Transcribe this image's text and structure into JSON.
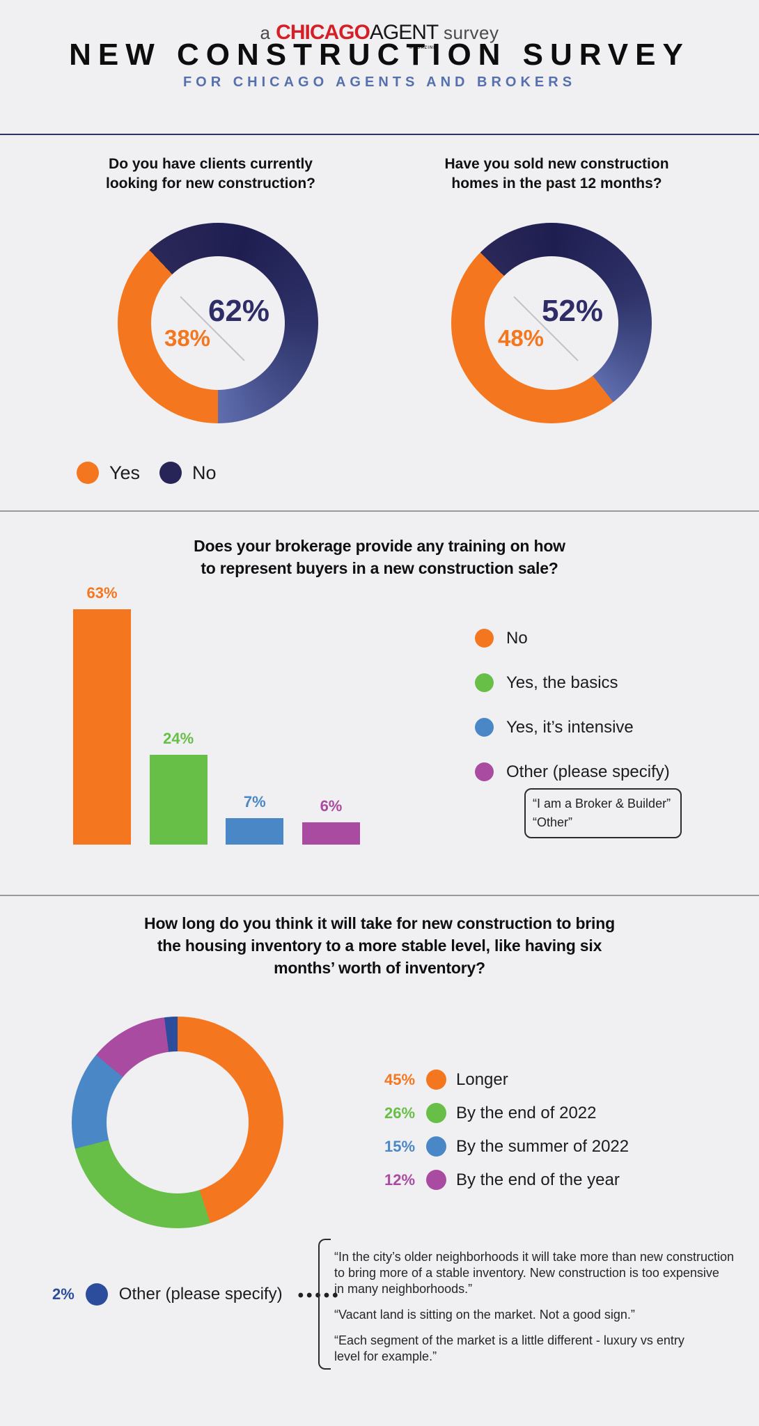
{
  "header": {
    "logo": {
      "prefix": "a",
      "brand_bold": "CHICAGO",
      "brand_light": "AGENT",
      "brand_sub": "MAGAZINE",
      "suffix": "survey"
    },
    "title": "NEW CONSTRUCTION SURVEY",
    "subtitle": "FOR CHICAGO AGENTS AND BROKERS"
  },
  "section1": {
    "question_left": "Do you have clients currently\nlooking for new construction?",
    "question_right": "Have you sold new construction\nhomes in the past 12 months?",
    "donut_left": {
      "big_label": "62%",
      "small_label": "38%"
    },
    "donut_right": {
      "big_label": "52%",
      "small_label": "48%"
    },
    "legend": [
      {
        "label": "Yes",
        "color": "#f4771f"
      },
      {
        "label": "No",
        "color": "#272557"
      }
    ]
  },
  "section2": {
    "title": "Does your brokerage provide any training on how\nto represent buyers in a new construction sale?",
    "legend": [
      {
        "label": "No",
        "color": "#f4771f"
      },
      {
        "label": "Yes, the basics",
        "color": "#68bf48"
      },
      {
        "label": "Yes, it’s intensive",
        "color": "#4a87c7"
      },
      {
        "label": "Other (please specify)",
        "color": "#aa4ba2"
      }
    ],
    "quote_lines": [
      "“I am a Broker & Builder”",
      "“Other”"
    ]
  },
  "section3": {
    "title": "How long do you think it will take for new construction to bring\nthe housing inventory to a more stable level, like having six\nmonths’ worth of inventory?",
    "legend": [
      {
        "pct": "45%",
        "label": "Longer",
        "color": "#f4771f"
      },
      {
        "pct": "26%",
        "label": "By the end of 2022",
        "color": "#68bf48"
      },
      {
        "pct": "15%",
        "label": "By the summer of 2022",
        "color": "#4a87c7"
      },
      {
        "pct": "12%",
        "label": "By the end of the year",
        "color": "#aa4ba2"
      }
    ],
    "other_pct": "2%",
    "other_label": "Other (please specify)",
    "other_color": "#2c4c9c",
    "leader_dots": "•••••",
    "quotes": [
      "“In the city’s older neighborhoods it will take more than new construction\nto bring more of a stable inventory. New construction is too expensive\nin many neighborhoods.”",
      "“Vacant land is sitting on the market. Not a good sign.”",
      "“Each segment of the market is a little different - luxury vs entry\nlevel for example.”"
    ]
  },
  "chart_data": [
    {
      "type": "donut",
      "title": "Do you have clients currently looking for new construction?",
      "slices": [
        {
          "label": "Yes",
          "value": 38,
          "color": "#f4771f"
        },
        {
          "label": "No",
          "value": 62,
          "color": "#272557"
        }
      ],
      "render": {
        "from_deg": 180,
        "stops": [
          {
            "c": "#f4771f",
            "p": 0
          },
          {
            "c": "#f4771f",
            "p": 38
          },
          {
            "c": "#2a2858",
            "p": 38
          },
          {
            "c": "#1f1e51",
            "p": 55
          },
          {
            "c": "#2e3268",
            "p": 75
          },
          {
            "c": "#47528e",
            "p": 90
          },
          {
            "c": "#5f6dae",
            "p": 100
          }
        ]
      }
    },
    {
      "type": "donut",
      "title": "Have you sold new construction homes in the past 12 months?",
      "slices": [
        {
          "label": "Yes",
          "value": 48,
          "color": "#f4771f"
        },
        {
          "label": "No",
          "value": 52,
          "color": "#272557"
        }
      ],
      "render": {
        "from_deg": 142,
        "stops": [
          {
            "c": "#f4771f",
            "p": 0
          },
          {
            "c": "#f4771f",
            "p": 48
          },
          {
            "c": "#2a2858",
            "p": 48
          },
          {
            "c": "#1f1e51",
            "p": 61
          },
          {
            "c": "#2e3268",
            "p": 80
          },
          {
            "c": "#47528e",
            "p": 92
          },
          {
            "c": "#5f6dae",
            "p": 100
          }
        ]
      }
    },
    {
      "type": "bar",
      "title": "Does your brokerage provide any training on how to represent buyers in a new construction sale?",
      "categories": [
        "No",
        "Yes, the basics",
        "Yes, it’s intensive",
        "Other (please specify)"
      ],
      "values": [
        63,
        24,
        7,
        6
      ],
      "value_labels": [
        "63%",
        "24%",
        "7%",
        "6%"
      ],
      "colors": [
        "#f4771f",
        "#68bf48",
        "#4a87c7",
        "#aa4ba2"
      ],
      "ylim": [
        0,
        70
      ],
      "grid": false,
      "legend_position": "right"
    },
    {
      "type": "donut",
      "title": "How long do you think it will take for new construction to bring the housing inventory to a more stable level, like having six months’ worth of inventory?",
      "slices": [
        {
          "label": "Longer",
          "value": 45,
          "color": "#f4771f"
        },
        {
          "label": "By the end of 2022",
          "value": 26,
          "color": "#68bf48"
        },
        {
          "label": "By the summer of 2022",
          "value": 15,
          "color": "#4a87c7"
        },
        {
          "label": "By the end of the year",
          "value": 12,
          "color": "#aa4ba2"
        },
        {
          "label": "Other (please specify)",
          "value": 2,
          "color": "#2c4c9c"
        }
      ],
      "render": {
        "from_deg": 0,
        "stops": [
          {
            "c": "#f4771f",
            "p": 0
          },
          {
            "c": "#f4771f",
            "p": 45
          },
          {
            "c": "#68bf48",
            "p": 45
          },
          {
            "c": "#68bf48",
            "p": 71
          },
          {
            "c": "#4a87c7",
            "p": 71
          },
          {
            "c": "#4a87c7",
            "p": 86
          },
          {
            "c": "#aa4ba2",
            "p": 86
          },
          {
            "c": "#aa4ba2",
            "p": 98
          },
          {
            "c": "#2c4c9c",
            "p": 98
          },
          {
            "c": "#2c4c9c",
            "p": 100
          }
        ]
      }
    }
  ]
}
